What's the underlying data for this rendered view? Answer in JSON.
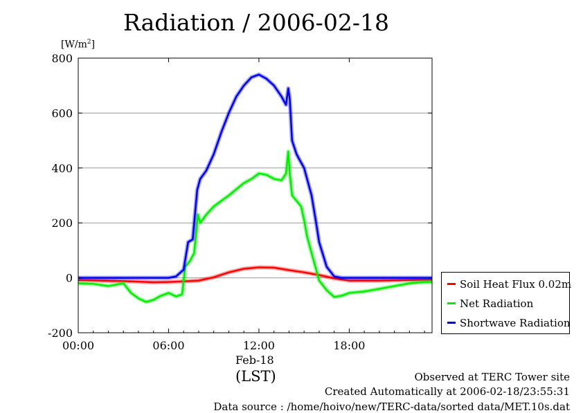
{
  "chart_data": {
    "type": "line",
    "title": "Radiation / 2006-02-18",
    "ylabel_unit": "[W/m",
    "ylabel_unit_sup": "2",
    "ylabel_unit_close": "]",
    "ylim": [
      -200,
      800
    ],
    "yticks": [
      "800",
      "600",
      "400",
      "200",
      "0",
      "-200"
    ],
    "ytick_values": [
      800,
      600,
      400,
      200,
      0,
      -200
    ],
    "grid": true,
    "xlim": [
      0,
      23.5
    ],
    "xticks": [
      "00:00",
      "06:00",
      "12:00",
      "18:00"
    ],
    "xtick_values": [
      0,
      6,
      12,
      18
    ],
    "x_date_label": "Feb-18",
    "xlabel": "(LST)",
    "legend_position": "right",
    "series": [
      {
        "name": "Soil Heat Flux 0.02m",
        "color": "#ff0000",
        "x": [
          0,
          3,
          5,
          6,
          7,
          8,
          9,
          10,
          11,
          12,
          13,
          14,
          15,
          16,
          17,
          18,
          20,
          22,
          23.5
        ],
        "values": [
          -8,
          -12,
          -16,
          -15,
          -13,
          -10,
          2,
          20,
          33,
          38,
          37,
          28,
          20,
          10,
          -2,
          -10,
          -10,
          -8,
          -7
        ]
      },
      {
        "name": "Net Radiation",
        "color": "#00ee00",
        "x": [
          0,
          1,
          2,
          3,
          3.5,
          4,
          4.5,
          5,
          5.5,
          6,
          6.5,
          6.9,
          7.1,
          7.4,
          7.7,
          7.95,
          8.1,
          8.5,
          9,
          10,
          11,
          11.5,
          12,
          12.5,
          13,
          13.5,
          13.8,
          13.95,
          14.05,
          14.2,
          14.5,
          14.8,
          15,
          15.2,
          15.5,
          15.8,
          16,
          16.5,
          17,
          17.5,
          18,
          19,
          20,
          21,
          22,
          23,
          23.5
        ],
        "values": [
          -20,
          -22,
          -30,
          -20,
          -55,
          -75,
          -88,
          -80,
          -65,
          -55,
          -68,
          -60,
          40,
          60,
          90,
          230,
          200,
          230,
          260,
          300,
          345,
          360,
          380,
          375,
          360,
          355,
          380,
          460,
          380,
          300,
          280,
          260,
          210,
          150,
          90,
          30,
          -10,
          -45,
          -70,
          -65,
          -55,
          -50,
          -40,
          -30,
          -20,
          -15,
          -15
        ]
      },
      {
        "name": "Shortwave Radiation",
        "color": "#0000ee",
        "x": [
          0,
          3,
          6,
          6.5,
          7,
          7.3,
          7.6,
          7.9,
          8.1,
          8.5,
          9,
          9.5,
          10,
          10.5,
          11,
          11.5,
          12,
          12.5,
          13,
          13.5,
          13.8,
          13.95,
          14.05,
          14.2,
          14.5,
          14.8,
          15,
          15.2,
          15.5,
          15.8,
          16,
          16.5,
          17,
          17.5,
          18,
          20,
          23.5
        ],
        "values": [
          0,
          0,
          0,
          5,
          30,
          130,
          140,
          320,
          360,
          390,
          450,
          530,
          600,
          660,
          700,
          730,
          740,
          725,
          700,
          660,
          630,
          690,
          650,
          500,
          450,
          420,
          400,
          360,
          300,
          200,
          130,
          40,
          5,
          0,
          0,
          0,
          0
        ]
      }
    ]
  },
  "footer": {
    "observed": "Observed at TERC Tower site",
    "created": "Created Automatically at 2006-02-18/23:55:31",
    "source": "Data source : /home/hoivo/new/TERC-data/sorted  data/MET.10s.dat"
  }
}
